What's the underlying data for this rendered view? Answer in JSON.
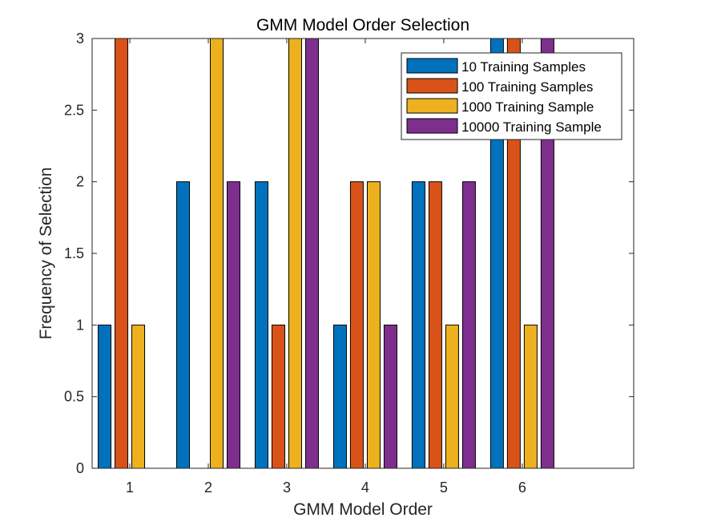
{
  "chart_data": {
    "type": "bar",
    "title": "GMM Model Order Selection",
    "xlabel": "GMM Model Order",
    "ylabel": "Frequency of Selection",
    "categories": [
      "1",
      "2",
      "3",
      "4",
      "5",
      "6"
    ],
    "ylim": [
      0,
      3
    ],
    "yticks": [
      "0",
      "0.5",
      "1",
      "1.5",
      "2",
      "2.5",
      "3"
    ],
    "grid": false,
    "legend_position": "top-right",
    "series": [
      {
        "name": "10 Training Samples",
        "color": "#0072BD",
        "values": [
          1,
          2,
          2,
          1,
          2,
          3
        ]
      },
      {
        "name": "100 Training Samples",
        "color": "#D95319",
        "values": [
          3,
          0,
          1,
          2,
          2,
          3
        ]
      },
      {
        "name": "1000 Training Sample",
        "color": "#EDB120",
        "values": [
          1,
          3,
          3,
          2,
          1,
          1
        ]
      },
      {
        "name": "10000 Training Sample",
        "color": "#7E2F8E",
        "values": [
          0,
          2,
          3,
          1,
          2,
          3
        ]
      }
    ]
  }
}
